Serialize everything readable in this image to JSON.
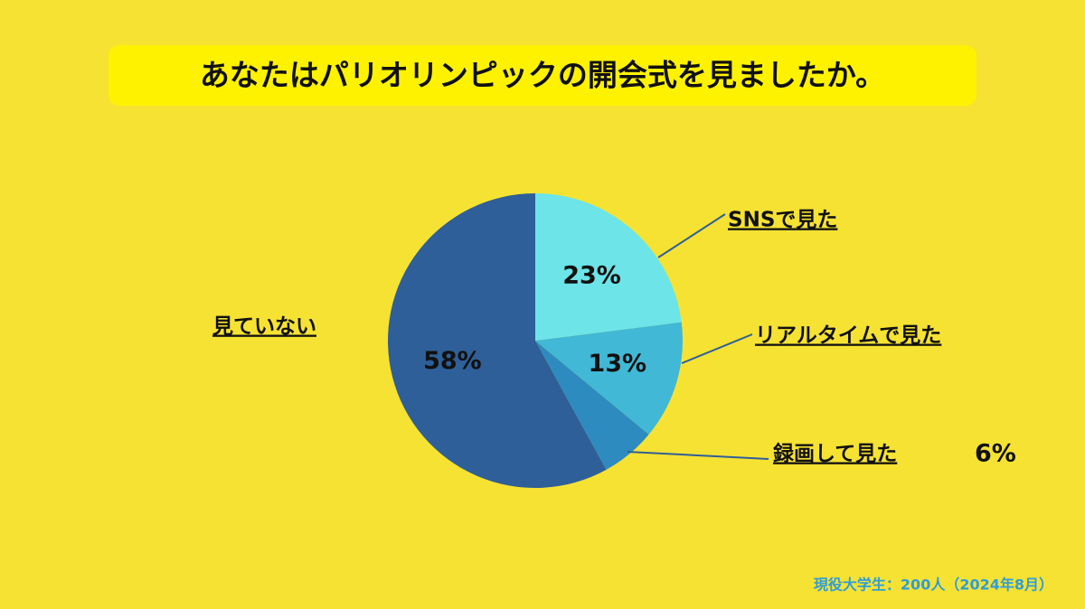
{
  "chart_data": {
    "type": "pie",
    "title": "あなたはパリオリンピックの開会式を見ましたか。",
    "categories": [
      "SNSで見た",
      "リアルタイムで見た",
      "録画して見た",
      "見ていない"
    ],
    "values": [
      23,
      13,
      6,
      58
    ],
    "value_labels": [
      "23%",
      "13%",
      "6%",
      "58%"
    ],
    "colors": [
      "#6ce4e8",
      "#41b8d5",
      "#2e8bc0",
      "#2f5f98"
    ],
    "note": "現役大学生：200人（2024年8月）"
  }
}
